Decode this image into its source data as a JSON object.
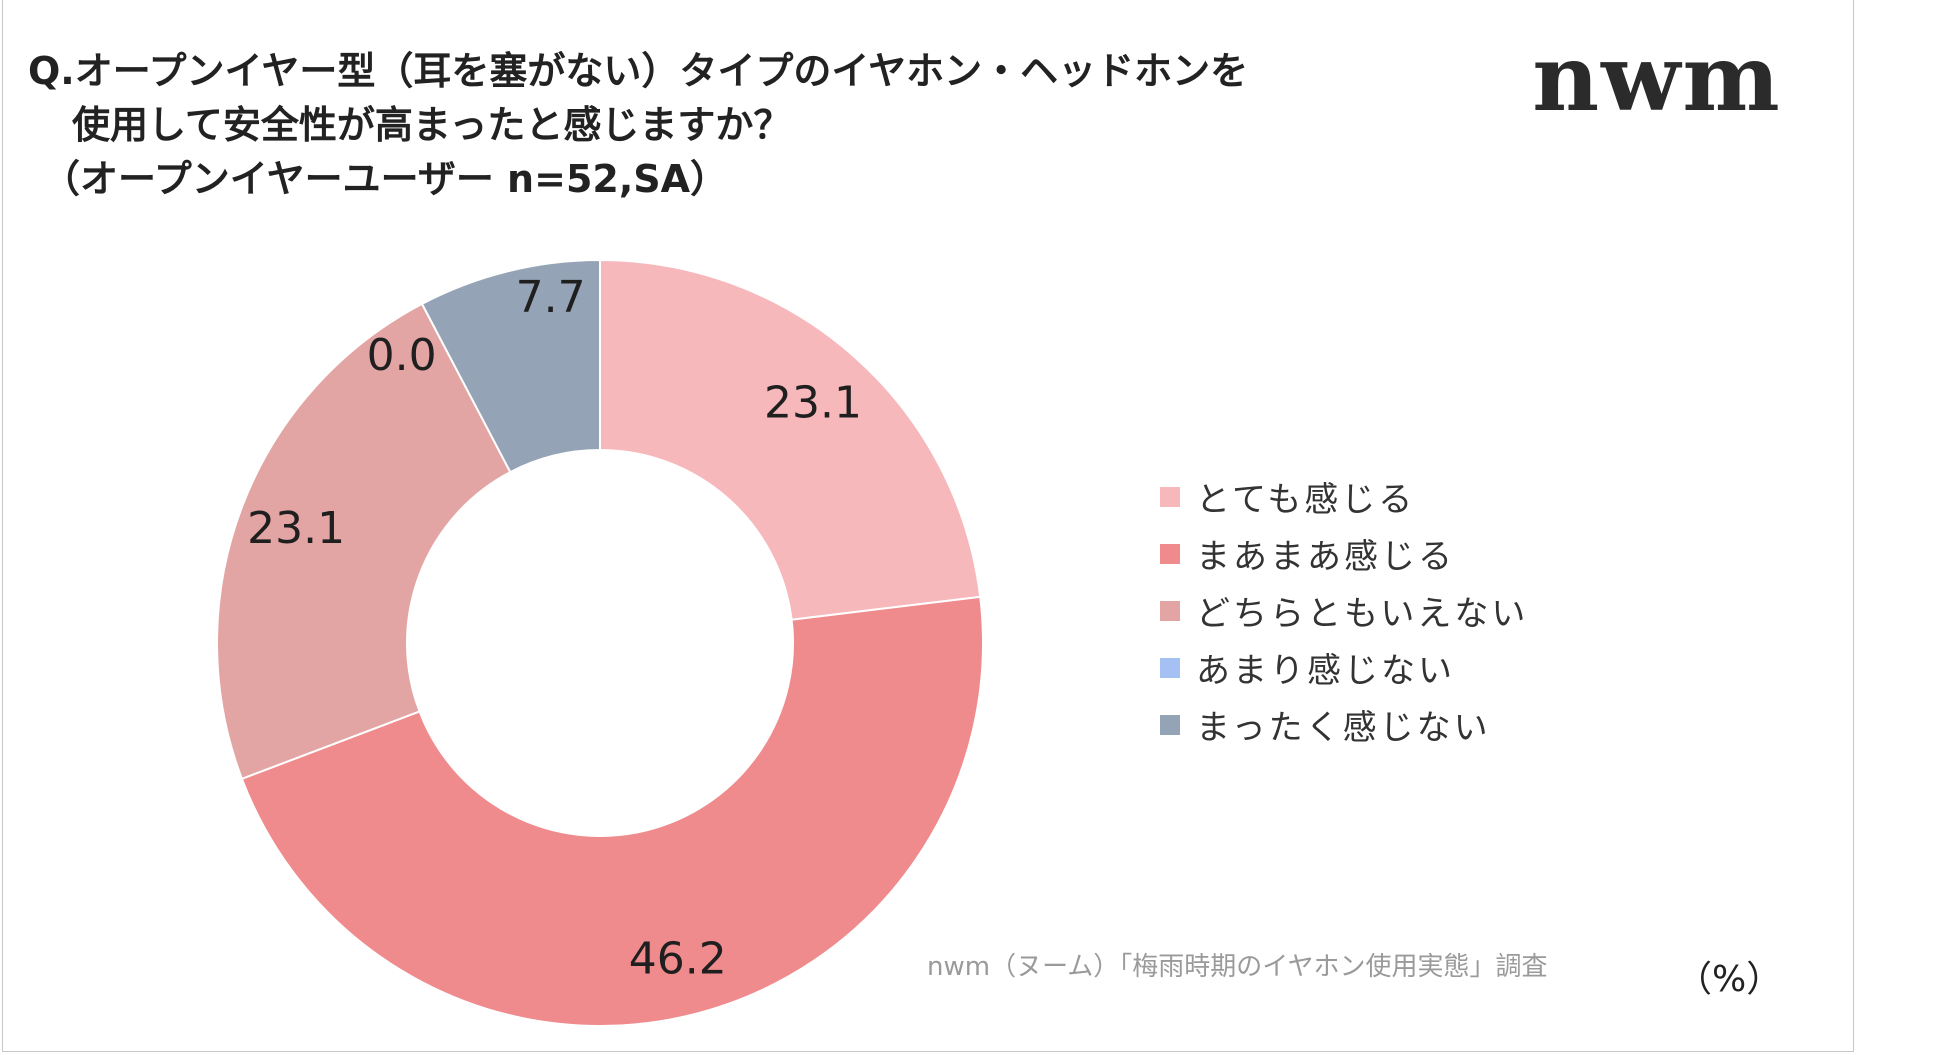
{
  "title": {
    "line1": "Q.オープンイヤー型（耳を塞がない）タイプのイヤホン・ヘッドホンを",
    "line2": "使用して安全性が高まったと感じますか？",
    "line3": "（オープンイヤーユーザー n=52,SA）"
  },
  "logo": {
    "text": "nwm",
    "color": "#2b2b2b"
  },
  "source": "nwm（ヌーム）「梅雨時期のイヤホン使用実態」調査",
  "unit": "（%）",
  "chart_data": {
    "type": "donut",
    "unit": "%",
    "sample": "n=52",
    "categories": [
      "とても感じる",
      "まあまあ感じる",
      "どちらともいえない",
      "あまり感じない",
      "まったく感じない"
    ],
    "values": [
      23.1,
      46.2,
      23.1,
      0.0,
      7.7
    ],
    "value_labels": [
      "23.1",
      "46.2",
      "23.1",
      "0.0",
      "7.7"
    ],
    "colors": [
      "#f6b8ba",
      "#f08b8d",
      "#e2a5a3",
      "#a5c0f2",
      "#94a3b6"
    ],
    "legend_position": "right",
    "start": "top",
    "direction": "clockwise"
  }
}
